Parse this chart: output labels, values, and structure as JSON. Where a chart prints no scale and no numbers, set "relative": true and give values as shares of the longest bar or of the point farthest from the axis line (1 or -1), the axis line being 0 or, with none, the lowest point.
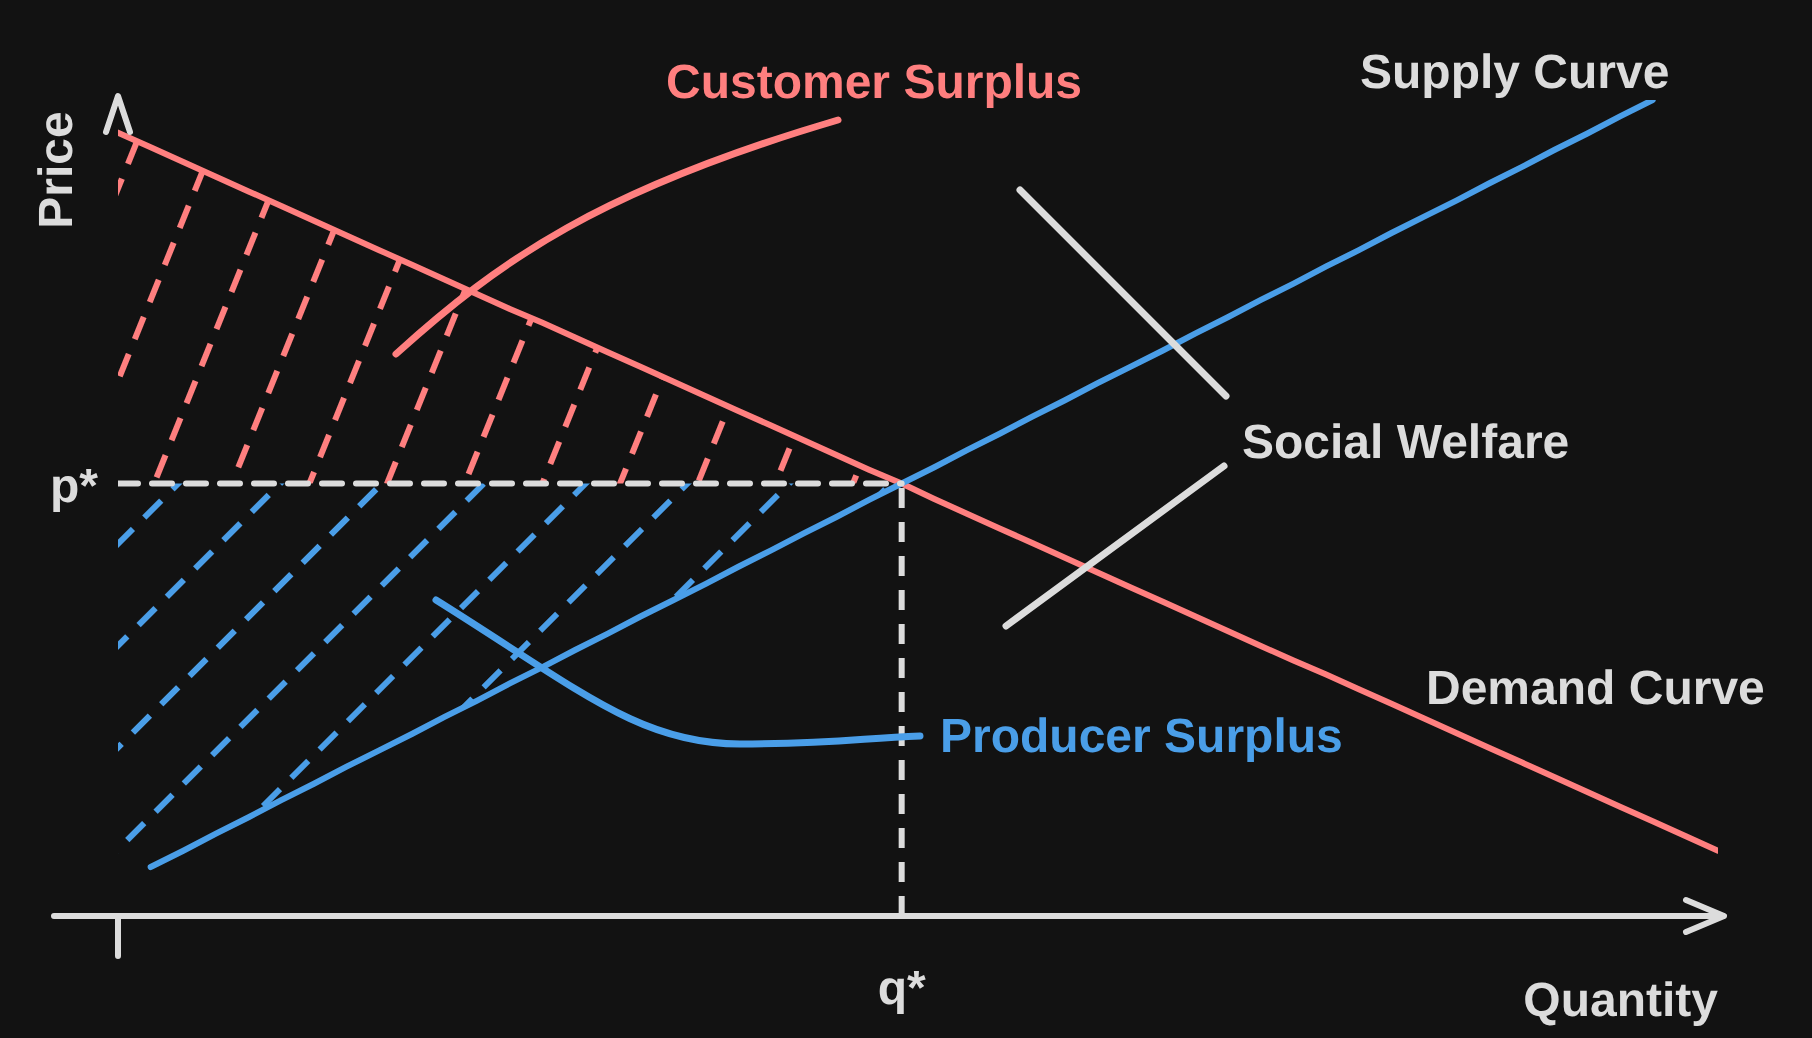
{
  "chart_data": {
    "type": "line",
    "relative": true,
    "xlabel": "Quantity",
    "ylabel": "Price",
    "categories": [
      null,
      null,
      null,
      null,
      null,
      null,
      null,
      null,
      null,
      null,
      null,
      null,
      null,
      null,
      null,
      null,
      null,
      null,
      null,
      null,
      null,
      null,
      null,
      null,
      null,
      null,
      null,
      null,
      null,
      null,
      null,
      null,
      null,
      null,
      null,
      null,
      null,
      null,
      null,
      null,
      null,
      null,
      null,
      null,
      null,
      null,
      null,
      null,
      null,
      null
    ],
    "series": [
      {
        "name": "Demand Curve",
        "color": "#ff7f7f",
        "values": [
          0.96,
          0.942,
          0.924,
          0.906,
          0.888,
          0.87,
          0.852,
          0.834,
          0.816,
          0.798,
          0.78,
          0.762,
          0.744,
          0.727,
          0.709,
          0.691,
          0.673,
          0.655,
          0.637,
          0.619,
          0.601,
          0.583,
          0.565,
          0.547,
          0.53,
          0.511,
          0.493,
          0.475,
          0.457,
          0.439,
          0.421,
          0.403,
          0.385,
          0.367,
          0.349,
          0.331,
          0.313,
          0.296,
          0.278,
          0.26,
          0.242,
          0.224,
          0.206,
          0.188,
          0.17,
          0.152,
          0.134,
          0.116,
          0.098,
          0.08
        ],
        "lower": [
          0.53,
          0.53,
          0.53,
          0.53,
          0.53,
          0.53,
          0.53,
          0.53,
          0.53,
          0.53,
          0.53,
          0.53,
          0.53,
          0.53,
          0.53,
          0.53,
          0.53,
          0.53,
          0.53,
          0.53,
          0.53,
          0.53,
          0.53,
          0.53,
          0.53,
          null,
          null,
          null,
          null,
          null,
          null,
          null,
          null,
          null,
          null,
          null,
          null,
          null,
          null,
          null,
          null,
          null,
          null,
          null,
          null,
          null,
          null,
          null,
          null,
          null
        ],
        "upper": [
          0.96,
          0.942,
          0.924,
          0.906,
          0.888,
          0.87,
          0.852,
          0.834,
          0.816,
          0.798,
          0.78,
          0.762,
          0.744,
          0.727,
          0.709,
          0.691,
          0.673,
          0.655,
          0.637,
          0.619,
          0.601,
          0.583,
          0.565,
          0.547,
          0.53,
          null,
          null,
          null,
          null,
          null,
          null,
          null,
          null,
          null,
          null,
          null,
          null,
          null,
          null,
          null,
          null,
          null,
          null,
          null,
          null,
          null,
          null,
          null,
          null,
          null
        ]
      },
      {
        "name": "Supply Curve",
        "color": "#4a9ee8",
        "values": [
          null,
          0.06,
          0.08,
          0.101,
          0.121,
          0.142,
          0.162,
          0.183,
          0.203,
          0.223,
          0.244,
          0.264,
          0.285,
          0.305,
          0.326,
          0.346,
          0.367,
          0.387,
          0.407,
          0.428,
          0.448,
          0.469,
          0.489,
          0.51,
          0.53,
          0.55,
          0.571,
          0.591,
          0.612,
          0.632,
          0.653,
          0.673,
          0.693,
          0.714,
          0.734,
          0.755,
          0.775,
          0.796,
          0.816,
          0.837,
          0.857,
          0.877,
          0.898,
          0.918,
          0.939,
          0.959,
          0.98,
          1,
          null,
          null
        ],
        "lower": [
          0.04,
          0.06,
          0.08,
          0.101,
          0.121,
          0.142,
          0.162,
          0.183,
          0.203,
          0.223,
          0.244,
          0.264,
          0.285,
          0.305,
          0.326,
          0.346,
          0.367,
          0.387,
          0.407,
          0.428,
          0.448,
          0.469,
          0.489,
          0.51,
          0.53,
          null,
          null,
          null,
          null,
          null,
          null,
          null,
          null,
          null,
          null,
          null,
          null,
          null,
          null,
          null,
          null,
          null,
          null,
          null,
          null,
          null,
          null,
          null,
          null,
          null
        ],
        "upper": [
          0.53,
          0.53,
          0.53,
          0.53,
          0.53,
          0.53,
          0.53,
          0.53,
          0.53,
          0.53,
          0.53,
          0.53,
          0.53,
          0.53,
          0.53,
          0.53,
          0.53,
          0.53,
          0.53,
          0.53,
          0.53,
          0.53,
          0.53,
          0.53,
          0.53,
          null,
          null,
          null,
          null,
          null,
          null,
          null,
          null,
          null,
          null,
          null,
          null,
          null,
          null,
          null,
          null,
          null,
          null,
          null,
          null,
          null,
          null,
          null,
          null,
          null
        ]
      },
      {
        "color": "#dcdcdc",
        "line_style": "dashed",
        "values": [
          0.53,
          0.53,
          0.53,
          0.53,
          0.53,
          0.53,
          0.53,
          0.53,
          0.53,
          0.53,
          0.53,
          0.53,
          0.53,
          0.53,
          0.53,
          0.53,
          0.53,
          0.53,
          0.53,
          0.53,
          0.53,
          0.53,
          0.53,
          0.53,
          0.53,
          null,
          null,
          null,
          null,
          null,
          null,
          null,
          null,
          null,
          null,
          null,
          null,
          null,
          null,
          null,
          null,
          null,
          null,
          null,
          null,
          null,
          null,
          null,
          null,
          null
        ]
      }
    ],
    "annotations": [
      "Customer Surplus",
      "Producer Surplus",
      "Social Welfare",
      "p*",
      "q*"
    ]
  }
}
